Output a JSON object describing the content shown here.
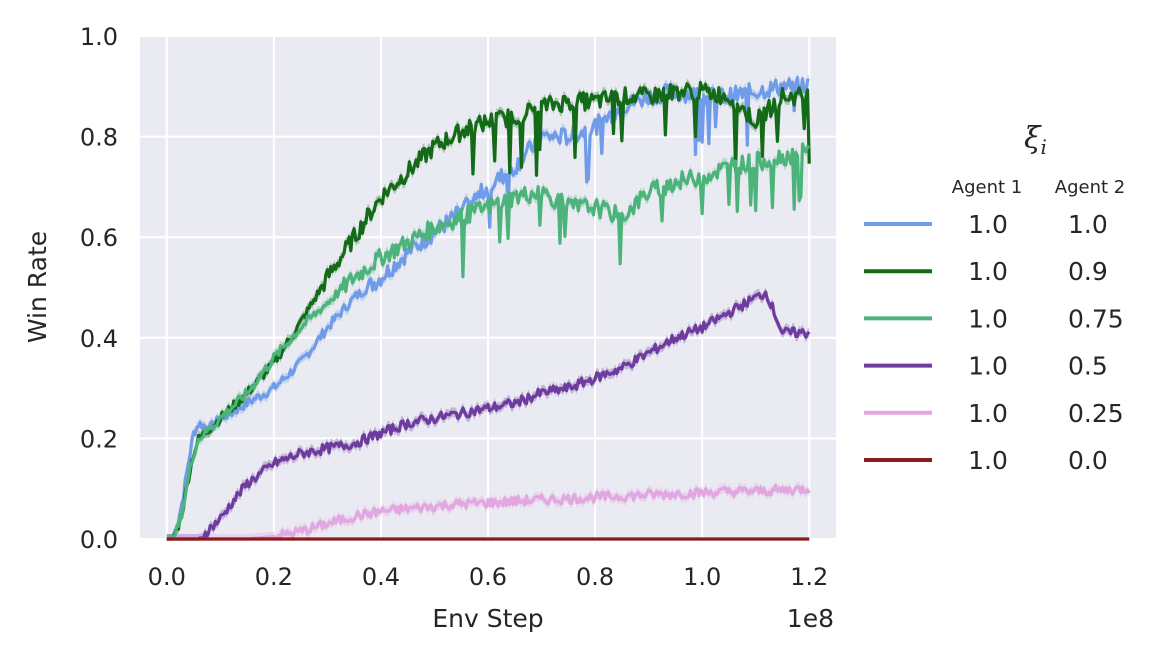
{
  "chart_data": {
    "type": "line",
    "title": "",
    "xlabel": "Env Step",
    "ylabel": "Win Rate",
    "x_offset_label": "1e8",
    "xlim": [
      -0.05,
      1.25
    ],
    "ylim": [
      0.0,
      1.0
    ],
    "x_ticks": [
      0.0,
      0.2,
      0.4,
      0.6,
      0.8,
      1.0,
      1.2
    ],
    "x_tick_labels": [
      "0.0",
      "0.2",
      "0.4",
      "0.6",
      "0.8",
      "1.0",
      "1.2"
    ],
    "y_ticks": [
      0.0,
      0.2,
      0.4,
      0.6,
      0.8,
      1.0
    ],
    "y_tick_labels": [
      "0.0",
      "0.2",
      "0.4",
      "0.6",
      "0.8",
      "1.0"
    ],
    "grid": true,
    "legend": {
      "placement": "right",
      "title": "ξ",
      "title_subscript": "i",
      "col1_header": "Agent 1",
      "col2_header": "Agent 2"
    },
    "series": [
      {
        "agent1": "1.0",
        "agent2": "1.0",
        "color": "#6f9be8",
        "x": [
          0.0,
          0.01,
          0.02,
          0.03,
          0.04,
          0.05,
          0.06,
          0.08,
          0.1,
          0.12,
          0.15,
          0.2,
          0.25,
          0.3,
          0.35,
          0.4,
          0.45,
          0.5,
          0.55,
          0.6,
          0.65,
          0.7,
          0.75,
          0.8,
          0.85,
          0.9,
          0.95,
          1.0,
          1.05,
          1.1,
          1.15,
          1.2
        ],
        "y": [
          0.0,
          0.0,
          0.03,
          0.08,
          0.15,
          0.21,
          0.23,
          0.22,
          0.24,
          0.25,
          0.27,
          0.3,
          0.35,
          0.42,
          0.48,
          0.52,
          0.57,
          0.61,
          0.65,
          0.7,
          0.74,
          0.8,
          0.8,
          0.82,
          0.86,
          0.88,
          0.89,
          0.88,
          0.88,
          0.89,
          0.9,
          0.9
        ]
      },
      {
        "agent1": "1.0",
        "agent2": "0.9",
        "color": "#136b17",
        "x": [
          0.0,
          0.01,
          0.02,
          0.03,
          0.04,
          0.05,
          0.06,
          0.08,
          0.1,
          0.12,
          0.15,
          0.2,
          0.25,
          0.3,
          0.35,
          0.4,
          0.45,
          0.5,
          0.55,
          0.6,
          0.65,
          0.7,
          0.75,
          0.8,
          0.85,
          0.9,
          0.95,
          1.0,
          1.05,
          1.1,
          1.15,
          1.2
        ],
        "y": [
          0.0,
          0.0,
          0.02,
          0.06,
          0.12,
          0.17,
          0.2,
          0.22,
          0.24,
          0.26,
          0.29,
          0.35,
          0.43,
          0.52,
          0.6,
          0.68,
          0.73,
          0.78,
          0.81,
          0.83,
          0.84,
          0.86,
          0.87,
          0.87,
          0.88,
          0.88,
          0.89,
          0.89,
          0.88,
          0.83,
          0.88,
          0.88
        ]
      },
      {
        "agent1": "1.0",
        "agent2": "0.75",
        "color": "#4cb47a",
        "x": [
          0.0,
          0.01,
          0.02,
          0.03,
          0.04,
          0.05,
          0.06,
          0.08,
          0.1,
          0.12,
          0.15,
          0.2,
          0.25,
          0.3,
          0.35,
          0.4,
          0.45,
          0.5,
          0.55,
          0.6,
          0.65,
          0.7,
          0.75,
          0.8,
          0.85,
          0.9,
          0.95,
          1.0,
          1.05,
          1.1,
          1.15,
          1.2
        ],
        "y": [
          0.0,
          0.0,
          0.02,
          0.06,
          0.12,
          0.17,
          0.2,
          0.22,
          0.24,
          0.26,
          0.29,
          0.36,
          0.42,
          0.47,
          0.52,
          0.56,
          0.59,
          0.62,
          0.64,
          0.66,
          0.68,
          0.69,
          0.66,
          0.66,
          0.64,
          0.69,
          0.71,
          0.72,
          0.74,
          0.75,
          0.76,
          0.77
        ]
      },
      {
        "agent1": "1.0",
        "agent2": "0.5",
        "color": "#6e3c9e",
        "x": [
          0.0,
          0.02,
          0.04,
          0.06,
          0.08,
          0.1,
          0.12,
          0.15,
          0.2,
          0.25,
          0.3,
          0.35,
          0.4,
          0.45,
          0.5,
          0.55,
          0.6,
          0.65,
          0.7,
          0.75,
          0.8,
          0.85,
          0.9,
          0.95,
          1.0,
          1.05,
          1.1,
          1.12,
          1.15,
          1.2
        ],
        "y": [
          0.0,
          0.0,
          0.0,
          0.0,
          0.02,
          0.04,
          0.07,
          0.11,
          0.15,
          0.17,
          0.18,
          0.19,
          0.21,
          0.23,
          0.24,
          0.25,
          0.26,
          0.27,
          0.29,
          0.3,
          0.32,
          0.34,
          0.37,
          0.4,
          0.42,
          0.45,
          0.48,
          0.49,
          0.41,
          0.41
        ]
      },
      {
        "agent1": "1.0",
        "agent2": "0.25",
        "color": "#e2a7e0",
        "x": [
          0.0,
          0.1,
          0.15,
          0.2,
          0.25,
          0.3,
          0.35,
          0.4,
          0.45,
          0.5,
          0.55,
          0.6,
          0.65,
          0.7,
          0.75,
          0.8,
          0.85,
          0.9,
          0.95,
          1.0,
          1.05,
          1.1,
          1.15,
          1.2
        ],
        "y": [
          0.0,
          0.0,
          0.0,
          0.005,
          0.015,
          0.03,
          0.045,
          0.055,
          0.06,
          0.065,
          0.07,
          0.072,
          0.075,
          0.078,
          0.08,
          0.083,
          0.085,
          0.088,
          0.09,
          0.092,
          0.094,
          0.095,
          0.097,
          0.1
        ]
      },
      {
        "agent1": "1.0",
        "agent2": "0.0",
        "color": "#8b1a1a",
        "x": [
          0.0,
          1.2
        ],
        "y": [
          0.0,
          0.0
        ]
      }
    ]
  }
}
